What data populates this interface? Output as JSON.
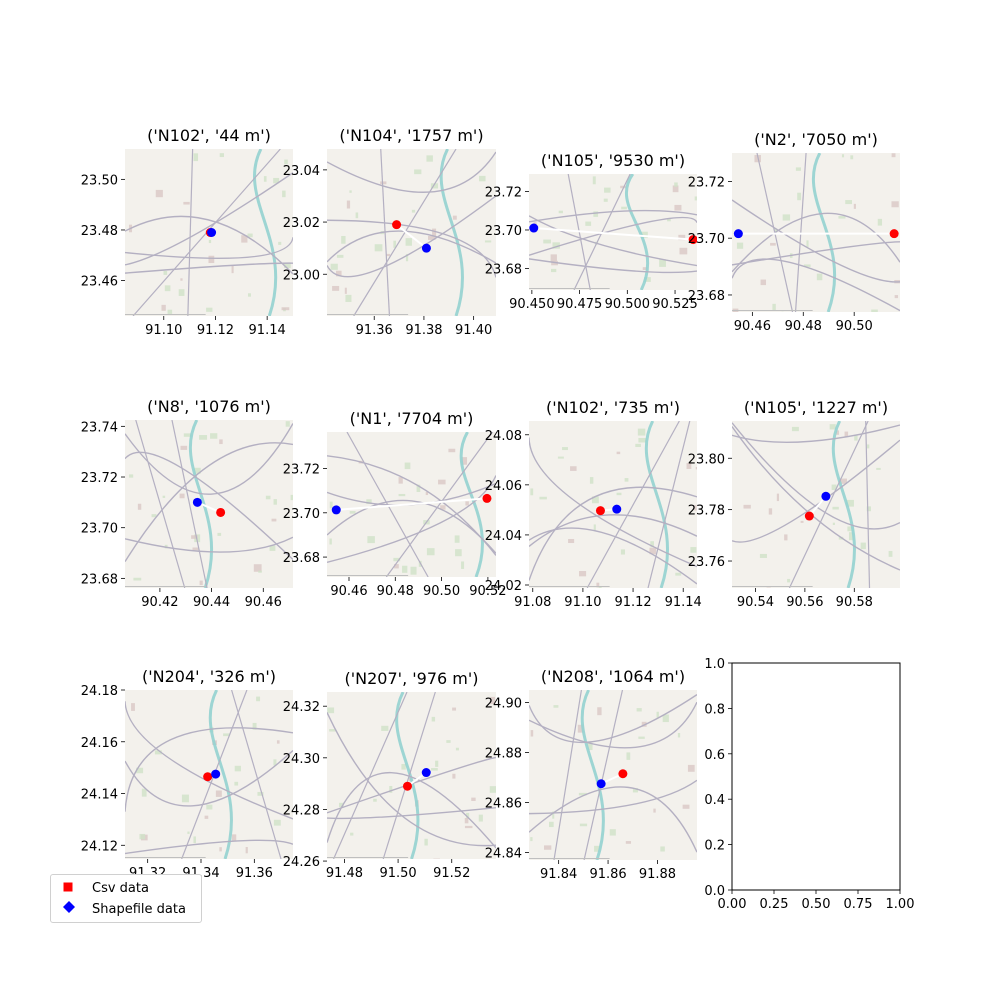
{
  "colors": {
    "csv": "#ff0000",
    "shapefile": "#0000ff",
    "connector": "#ffffff"
  },
  "legend": {
    "csv_label": "Csv data",
    "shapefile_label": "Shapefile data",
    "csv_marker": "square",
    "shapefile_marker": "diamond"
  },
  "chart_data": [
    {
      "type": "scatter",
      "title": "('N102', '44 m')",
      "background": "map",
      "xlim": [
        91.085,
        91.15
      ],
      "ylim": [
        23.446,
        23.512
      ],
      "xticks": [
        91.1,
        91.12,
        91.14
      ],
      "xtick_labels": [
        "91.10",
        "91.12",
        "91.14"
      ],
      "yticks": [
        23.46,
        23.48,
        23.5
      ],
      "ytick_labels": [
        "23.46",
        "23.48",
        "23.50"
      ],
      "csv_point": [
        91.118,
        23.479
      ],
      "shapefile_point": [
        91.1185,
        23.479
      ]
    },
    {
      "type": "scatter",
      "title": "('N104', '1757 m')",
      "background": "map",
      "xlim": [
        91.341,
        91.409
      ],
      "ylim": [
        22.984,
        23.048
      ],
      "xticks": [
        91.36,
        91.38,
        91.4
      ],
      "xtick_labels": [
        "91.36",
        "91.38",
        "91.40"
      ],
      "yticks": [
        23.0,
        23.02,
        23.04
      ],
      "ytick_labels": [
        "23.00",
        "23.02",
        "23.04"
      ],
      "csv_point": [
        91.369,
        23.019
      ],
      "shapefile_point": [
        91.381,
        23.01
      ]
    },
    {
      "type": "scatter",
      "title": "('N105', '9530 m')",
      "background": "map",
      "xlim": [
        90.4485,
        90.5365
      ],
      "ylim": [
        23.6688,
        23.7291
      ],
      "xticks": [
        90.45,
        90.475,
        90.5,
        90.525
      ],
      "xtick_labels": [
        "90.450",
        "90.475",
        "90.500",
        "90.525"
      ],
      "yticks": [
        23.68,
        23.7,
        23.72
      ],
      "ytick_labels": [
        "23.68",
        "23.70",
        "23.72"
      ],
      "csv_point": [
        90.5345,
        23.695
      ],
      "shapefile_point": [
        90.451,
        23.701
      ]
    },
    {
      "type": "scatter",
      "title": "('N2', '7050 m')",
      "background": "map",
      "xlim": [
        90.452,
        90.518
      ],
      "ylim": [
        23.674,
        23.73
      ],
      "xticks": [
        90.46,
        90.48,
        90.5
      ],
      "xtick_labels": [
        "90.46",
        "90.48",
        "90.50"
      ],
      "yticks": [
        23.68,
        23.7,
        23.72
      ],
      "ytick_labels": [
        "23.68",
        "23.70",
        "23.72"
      ],
      "csv_point": [
        90.5157,
        23.7016
      ],
      "shapefile_point": [
        90.4545,
        23.7016
      ]
    },
    {
      "type": "scatter",
      "title": "('N8', '1076 m')",
      "background": "map",
      "xlim": [
        90.4065,
        90.4715
      ],
      "ylim": [
        23.6762,
        23.7425
      ],
      "xticks": [
        90.42,
        90.44,
        90.46
      ],
      "xtick_labels": [
        "90.42",
        "90.44",
        "90.46"
      ],
      "yticks": [
        23.68,
        23.7,
        23.72,
        23.74
      ],
      "ytick_labels": [
        "23.68",
        "23.70",
        "23.72",
        "23.74"
      ],
      "csv_point": [
        90.4435,
        23.706
      ],
      "shapefile_point": [
        90.4345,
        23.71
      ]
    },
    {
      "type": "scatter",
      "title": "('N1', '7704 m')",
      "background": "map",
      "xlim": [
        90.4505,
        90.5235
      ],
      "ylim": [
        23.671,
        23.7365
      ],
      "xticks": [
        90.46,
        90.48,
        90.5,
        90.52
      ],
      "xtick_labels": [
        "90.46",
        "90.48",
        "90.50",
        "90.52"
      ],
      "yticks": [
        23.68,
        23.7,
        23.72
      ],
      "ytick_labels": [
        "23.68",
        "23.70",
        "23.72"
      ],
      "csv_point": [
        90.5196,
        23.7065
      ],
      "shapefile_point": [
        90.4545,
        23.7013
      ]
    },
    {
      "type": "scatter",
      "title": "('N102', '735 m')",
      "background": "map",
      "xlim": [
        91.0785,
        91.1455
      ],
      "ylim": [
        24.0188,
        24.0855
      ],
      "xticks": [
        91.08,
        91.1,
        91.12,
        91.14
      ],
      "xtick_labels": [
        "91.08",
        "91.10",
        "91.12",
        "91.14"
      ],
      "yticks": [
        24.02,
        24.04,
        24.06,
        24.08
      ],
      "ytick_labels": [
        "24.02",
        "24.04",
        "24.06",
        "24.08"
      ],
      "csv_point": [
        91.107,
        24.0497
      ],
      "shapefile_point": [
        91.1135,
        24.0503
      ]
    },
    {
      "type": "scatter",
      "title": "('N105', '1227 m')",
      "background": "map",
      "xlim": [
        90.5305,
        90.5985
      ],
      "ylim": [
        23.7495,
        23.8145
      ],
      "xticks": [
        90.54,
        90.56,
        90.58
      ],
      "xtick_labels": [
        "90.54",
        "90.56",
        "90.58"
      ],
      "yticks": [
        23.76,
        23.78,
        23.8
      ],
      "ytick_labels": [
        "23.76",
        "23.78",
        "23.80"
      ],
      "csv_point": [
        90.5618,
        23.7775
      ],
      "shapefile_point": [
        90.5685,
        23.7852
      ]
    },
    {
      "type": "scatter",
      "title": "('N204', '326 m')",
      "background": "map",
      "xlim": [
        91.3115,
        91.3745
      ],
      "ylim": [
        24.1147,
        24.18
      ],
      "xticks": [
        91.32,
        91.34,
        91.36
      ],
      "xtick_labels": [
        "91.32",
        "91.34",
        "91.36"
      ],
      "yticks": [
        24.12,
        24.14,
        24.16,
        24.18
      ],
      "ytick_labels": [
        "24.12",
        "24.14",
        "24.16",
        "24.18"
      ],
      "csv_point": [
        91.3425,
        24.1465
      ],
      "shapefile_point": [
        91.3455,
        24.1475
      ]
    },
    {
      "type": "scatter",
      "title": "('N207', '976 m')",
      "background": "map",
      "xlim": [
        91.4735,
        91.5365
      ],
      "ylim": [
        24.2608,
        24.3255
      ],
      "xticks": [
        91.48,
        91.5,
        91.52
      ],
      "xtick_labels": [
        "91.48",
        "91.50",
        "91.52"
      ],
      "yticks": [
        24.26,
        24.28,
        24.3,
        24.32
      ],
      "ytick_labels": [
        "24.26",
        "24.28",
        "24.30",
        "24.32"
      ],
      "csv_point": [
        91.5035,
        24.289
      ],
      "shapefile_point": [
        91.5105,
        24.2943
      ]
    },
    {
      "type": "scatter",
      "title": "('N208', '1064 m')",
      "background": "map",
      "xlim": [
        91.828,
        91.896
      ],
      "ylim": [
        24.837,
        24.905
      ],
      "xticks": [
        91.84,
        91.86,
        91.88
      ],
      "xtick_labels": [
        "91.84",
        "91.86",
        "91.88"
      ],
      "yticks": [
        24.84,
        24.86,
        24.88,
        24.9
      ],
      "ytick_labels": [
        "24.84",
        "24.86",
        "24.88",
        "24.90"
      ],
      "csv_point": [
        91.866,
        24.8715
      ],
      "shapefile_point": [
        91.8572,
        24.8675
      ]
    },
    {
      "type": "scatter",
      "title": "",
      "background": "none",
      "xlim": [
        0,
        1
      ],
      "ylim": [
        0,
        1
      ],
      "xticks": [
        0,
        0.25,
        0.5,
        0.75,
        1
      ],
      "xtick_labels": [
        "0.00",
        "0.25",
        "0.50",
        "0.75",
        "1.00"
      ],
      "yticks": [
        0,
        0.2,
        0.4,
        0.6,
        0.8,
        1
      ],
      "ytick_labels": [
        "0.0",
        "0.2",
        "0.4",
        "0.6",
        "0.8",
        "1.0"
      ],
      "csv_point": null,
      "shapefile_point": null
    }
  ]
}
